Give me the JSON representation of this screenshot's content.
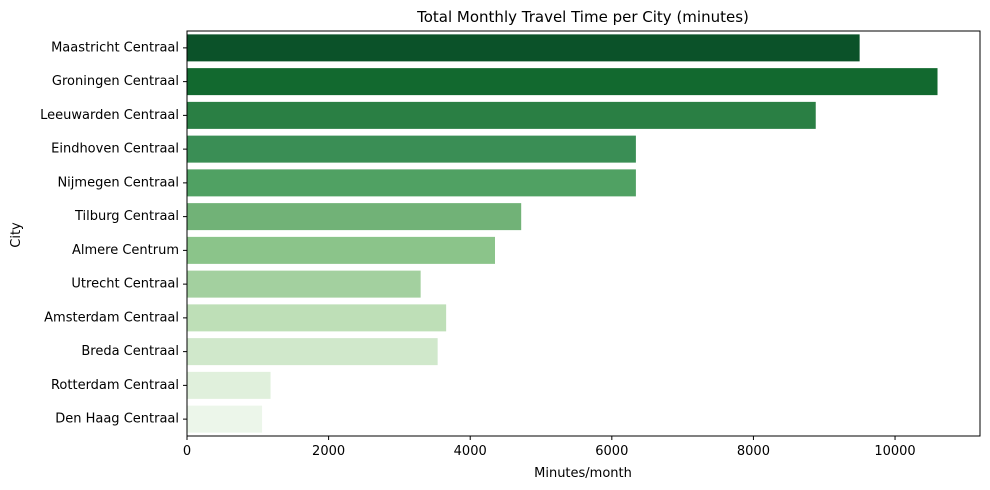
{
  "chart_data": {
    "type": "bar",
    "orientation": "horizontal",
    "title": "Total Monthly Travel Time per City (minutes)",
    "xlabel": "Minutes/month",
    "ylabel": "City",
    "xlim": [
      0,
      11200
    ],
    "xticks": [
      0,
      2000,
      4000,
      6000,
      8000,
      10000
    ],
    "grid": false,
    "categories": [
      "Maastricht Centraal",
      "Groningen Centraal",
      "Leeuwarden Centraal",
      "Eindhoven Centraal",
      "Nijmegen Centraal",
      "Tilburg Centraal",
      "Almere Centrum",
      "Utrecht Centraal",
      "Amsterdam Centraal",
      "Breda Centraal",
      "Rotterdam Centraal",
      "Den Haag Centraal"
    ],
    "values": [
      9500,
      10600,
      8880,
      6340,
      6340,
      4720,
      4350,
      3300,
      3660,
      3540,
      1180,
      1060
    ],
    "colors": [
      "#0b5229",
      "#12692f",
      "#2a7f44",
      "#3a8e55",
      "#50a163",
      "#71b277",
      "#8bc48a",
      "#a3d09f",
      "#bedfb7",
      "#d0e8cb",
      "#e0f0dc",
      "#ecf6ea"
    ]
  }
}
